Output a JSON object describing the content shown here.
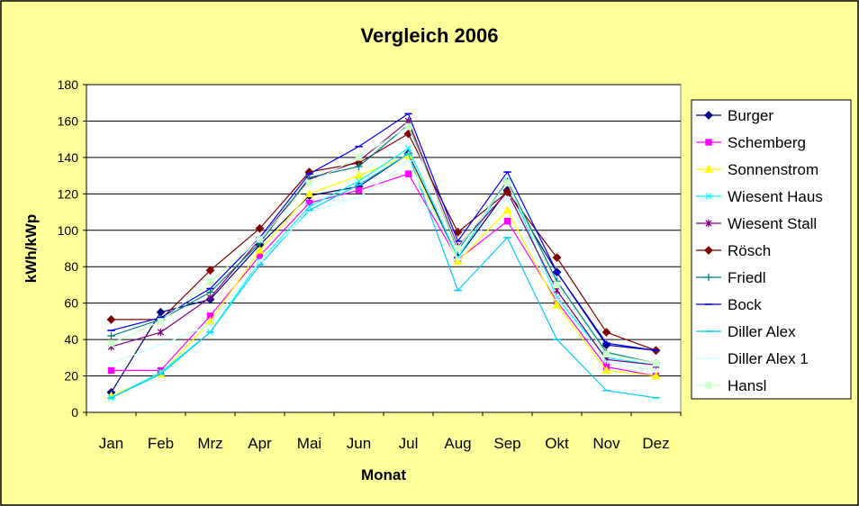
{
  "chart_data": {
    "type": "line",
    "title": "Vergleich 2006",
    "xlabel": "Monat",
    "ylabel": "kWh/kWp",
    "ylim": [
      0,
      180
    ],
    "yticks": [
      "0",
      "20",
      "40",
      "60",
      "80",
      "100",
      "120",
      "140",
      "160",
      "180"
    ],
    "grid": true,
    "legend_position": "right",
    "categories": [
      "Jan",
      "Feb",
      "Mrz",
      "Apr",
      "Mai",
      "Jun",
      "Jul",
      "Aug",
      "Sep",
      "Okt",
      "Nov",
      "Dez"
    ],
    "series": [
      {
        "name": "Burger",
        "color": "#000080",
        "marker": "diamond",
        "values": [
          11,
          55,
          62,
          92,
          119,
          124,
          142,
          85,
          122,
          77,
          37,
          34
        ]
      },
      {
        "name": "Schemberg",
        "color": "#ff00ff",
        "marker": "square",
        "values": [
          23,
          23,
          53,
          86,
          115,
          122,
          131,
          84,
          105,
          61,
          25,
          20
        ]
      },
      {
        "name": "Sonnenstrom",
        "color": "#ffff00",
        "marker": "triangle",
        "values": [
          9,
          21,
          50,
          89,
          120,
          130,
          141,
          83,
          111,
          59,
          23,
          20
        ]
      },
      {
        "name": "Wiesent Haus",
        "color": "#00ffff",
        "marker": "x",
        "values": [
          8,
          22,
          44,
          83,
          113,
          127,
          145,
          85,
          127,
          63,
          30,
          26
        ]
      },
      {
        "name": "Wiesent Stall",
        "color": "#800080",
        "marker": "star",
        "values": [
          36,
          44,
          63,
          95,
          128,
          138,
          160,
          91,
          121,
          67,
          29,
          26
        ]
      },
      {
        "name": "Rösch",
        "color": "#800000",
        "marker": "diamond",
        "values": [
          51,
          51,
          78,
          101,
          132,
          137,
          153,
          99,
          121,
          85,
          44,
          34
        ]
      },
      {
        "name": "Friedl",
        "color": "#008080",
        "marker": "plus",
        "values": [
          42,
          51,
          66,
          93,
          129,
          135,
          158,
          89,
          127,
          72,
          33,
          27
        ]
      },
      {
        "name": "Bock",
        "color": "#0000ff",
        "marker": "dash",
        "values": [
          45,
          52,
          68,
          96,
          131,
          146,
          164,
          94,
          132,
          77,
          38,
          34
        ]
      },
      {
        "name": "Diller Alex",
        "color": "#00ccff",
        "marker": "dash",
        "values": [
          8,
          21,
          44,
          81,
          111,
          125,
          142,
          67,
          96,
          40,
          12,
          8
        ]
      },
      {
        "name": "Diller Alex 1",
        "color": "#ccffff",
        "marker": "dash",
        "values": [
          27,
          37,
          48,
          83,
          110,
          118,
          138,
          84,
          118,
          62,
          28,
          23
        ]
      },
      {
        "name": "Hansl",
        "color": "#ccffcc",
        "marker": "square",
        "values": [
          38,
          50,
          72,
          95,
          126,
          140,
          157,
          90,
          126,
          70,
          32,
          27
        ]
      }
    ]
  }
}
